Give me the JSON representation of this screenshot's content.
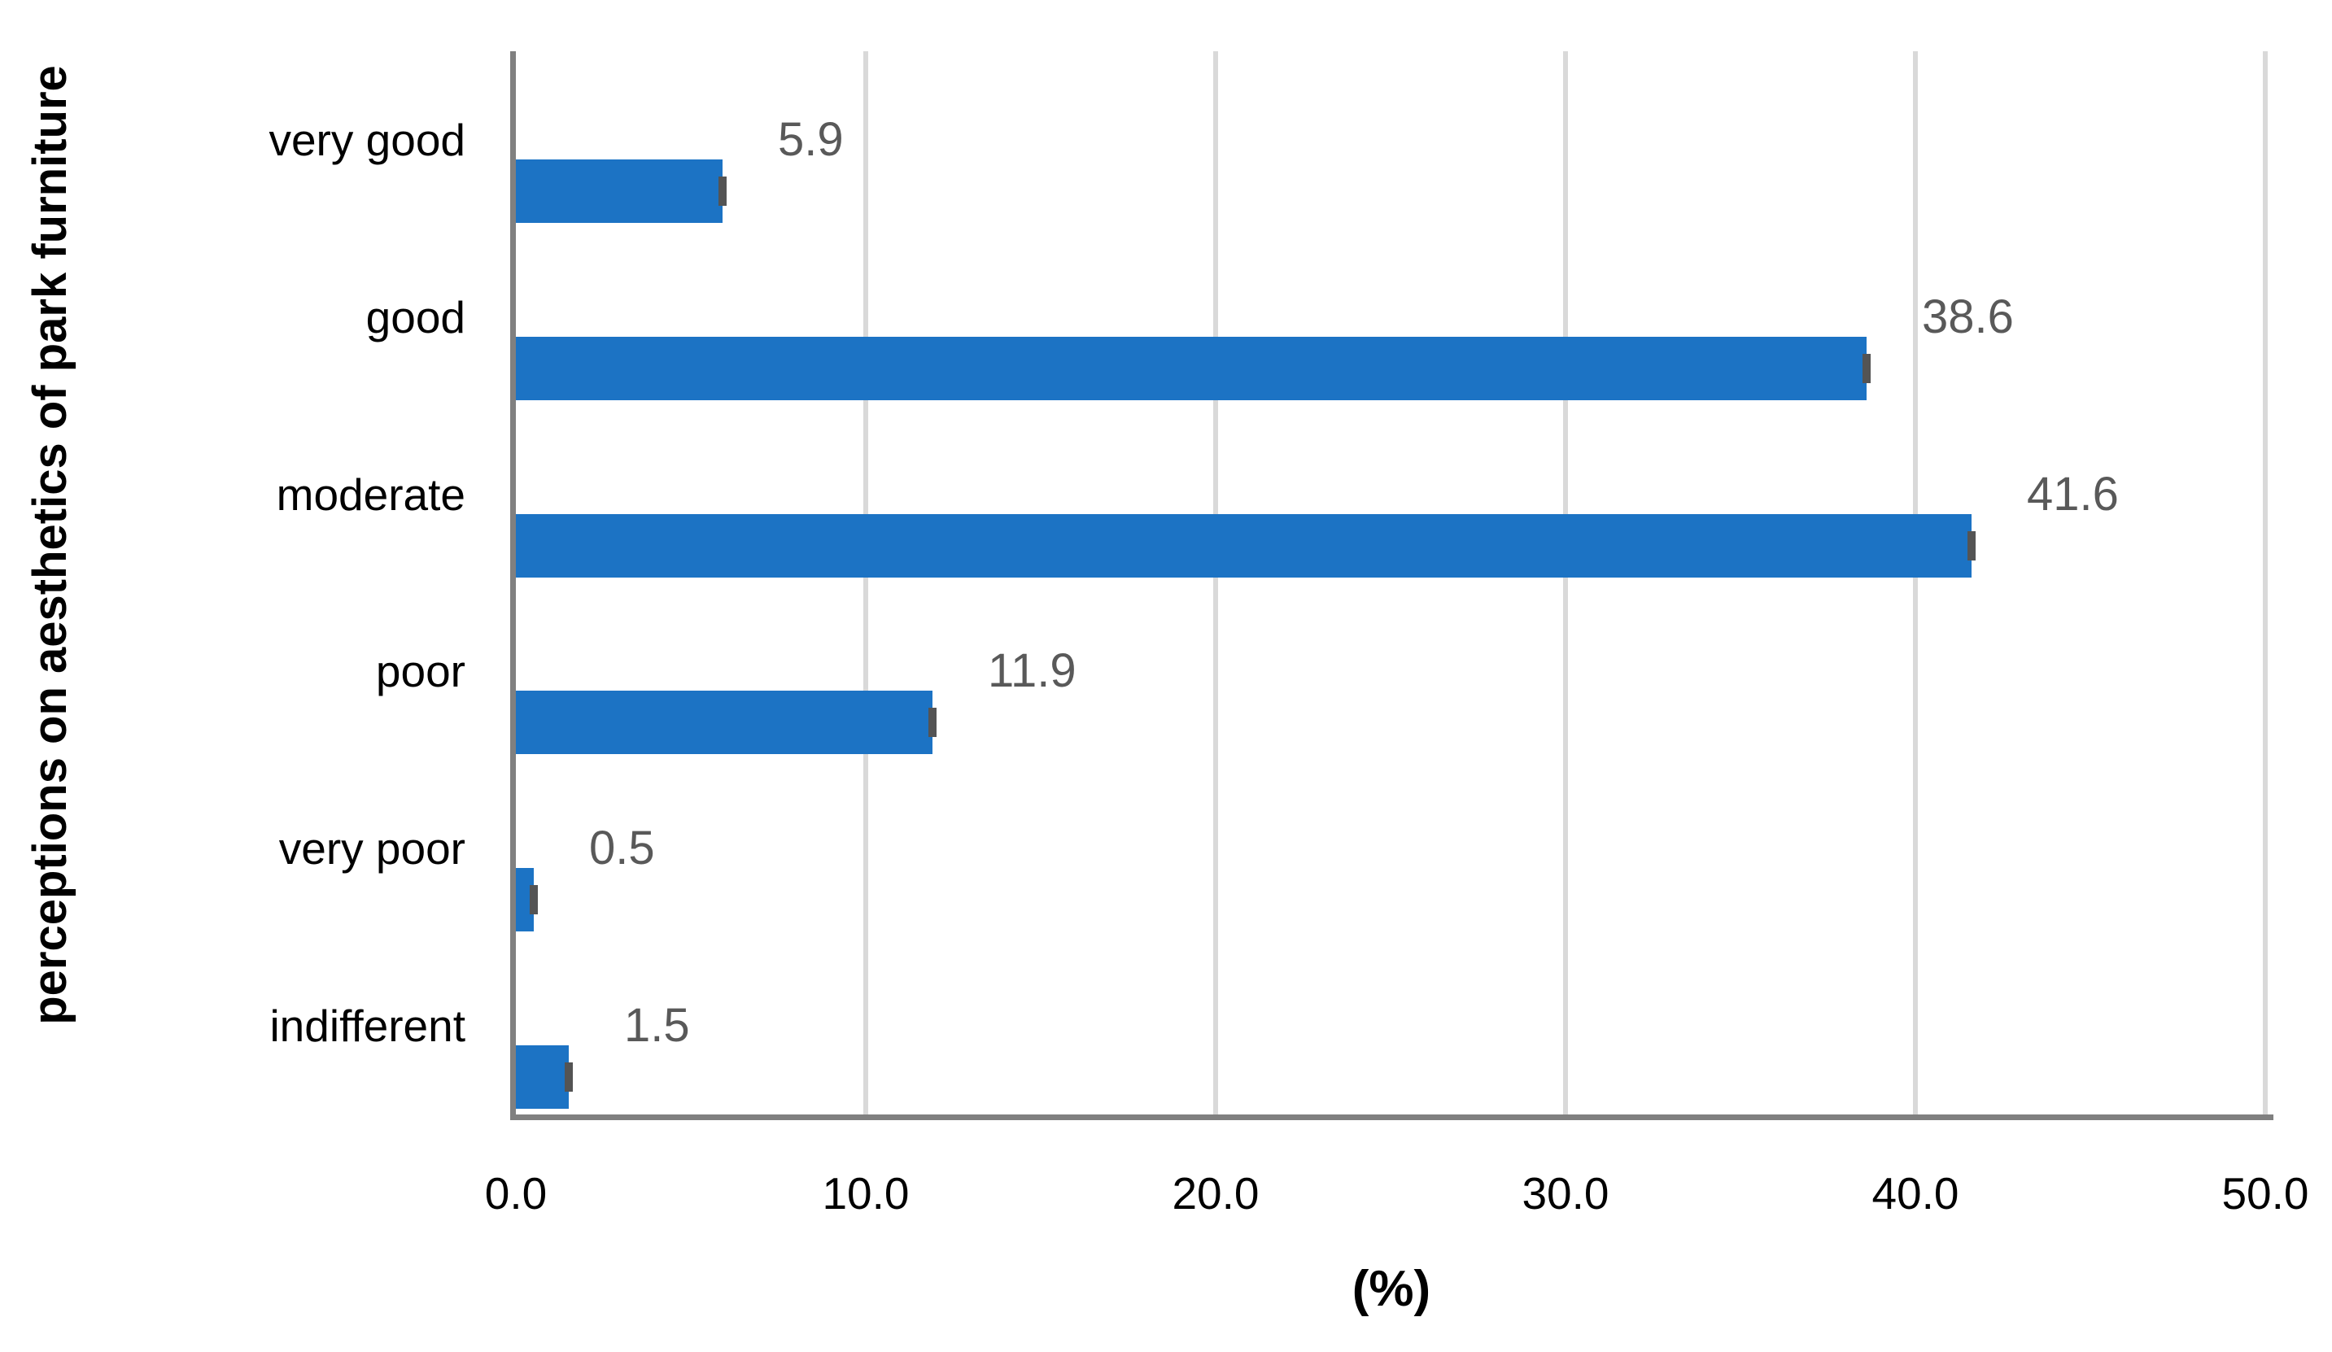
{
  "chart_data": {
    "type": "bar",
    "orientation": "horizontal",
    "title": "",
    "xlabel": "(%)",
    "ylabel": "perceptions on aesthetics of park furniture",
    "categories": [
      "very good",
      "good",
      "moderate",
      "poor",
      "very poor",
      "indifferent"
    ],
    "values": [
      5.9,
      38.6,
      41.6,
      11.9,
      0.5,
      1.5
    ],
    "data_labels": [
      "5.9",
      "38.6",
      "41.6",
      "11.9",
      "0.5",
      "1.5"
    ],
    "x_ticks": [
      0,
      10,
      20,
      30,
      40,
      50
    ],
    "x_tick_labels": [
      "0.0",
      "10.0",
      "20.0",
      "30.0",
      "40.0",
      "50.0"
    ],
    "xlim": [
      0,
      50
    ],
    "grid": "vertical",
    "legend_position": "none",
    "error_bars": {
      "visible": true,
      "style": "cap-at-bar-end"
    },
    "colors": {
      "bar": "#1c73c4",
      "error_cap": "#545454",
      "data_label": "#595959",
      "axis_line": "#808080",
      "gridline": "#d9d9d9",
      "text": "#000000",
      "background": "#ffffff"
    }
  }
}
